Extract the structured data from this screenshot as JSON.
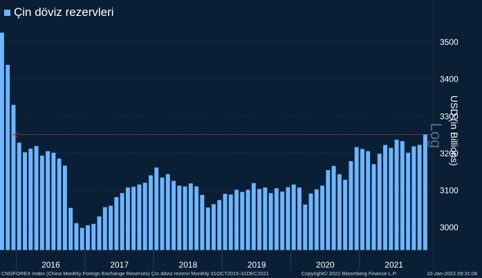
{
  "chart_data": {
    "type": "bar",
    "title": "Çin döviz rezervleri",
    "ylabel": "USD (in Billions)",
    "scale_label": "Log",
    "ylim": [
      2960,
      3565
    ],
    "yticks": [
      3000,
      3100,
      3200,
      3300,
      3400,
      3500
    ],
    "reference_line": 3250,
    "colors": {
      "background": "#0a1f36",
      "bar": "#6fb5ff",
      "reference": "#d84a4a",
      "grid": "#4a5f78"
    },
    "grid": true,
    "legend_position": "top-left",
    "year_labels": [
      "2016",
      "2017",
      "2018",
      "2019",
      "2020",
      "2021"
    ],
    "x_start": "Oct 2015",
    "x_end": "Dec 2021",
    "values": [
      3525,
      3438,
      3330,
      3228,
      3202,
      3212,
      3219,
      3193,
      3205,
      3201,
      3185,
      3166,
      3052,
      3011,
      2998,
      3005,
      3009,
      3029,
      3054,
      3058,
      3081,
      3092,
      3107,
      3109,
      3115,
      3120,
      3140,
      3161,
      3134,
      3143,
      3125,
      3112,
      3110,
      3118,
      3110,
      3087,
      3053,
      3062,
      3073,
      3090,
      3088,
      3101,
      3095,
      3101,
      3119,
      3103,
      3107,
      3092,
      3105,
      3096,
      3108,
      3115,
      3107,
      3061,
      3091,
      3102,
      3112,
      3154,
      3165,
      3143,
      3128,
      3178,
      3216,
      3211,
      3205,
      3170,
      3198,
      3222,
      3214,
      3236,
      3232,
      3201,
      3218,
      3222,
      3250
    ]
  },
  "footer": {
    "ticker": "CNGFOREX Index (China Monthly Foreign Exchange Reserves) Çin döviz rezervi  Monthly 31OCT2015-31DEC2021",
    "copyright": "Copyright© 2022 Bloomberg Finance L.P.",
    "timestamp": "10-Jan-2022 09:31:06"
  }
}
